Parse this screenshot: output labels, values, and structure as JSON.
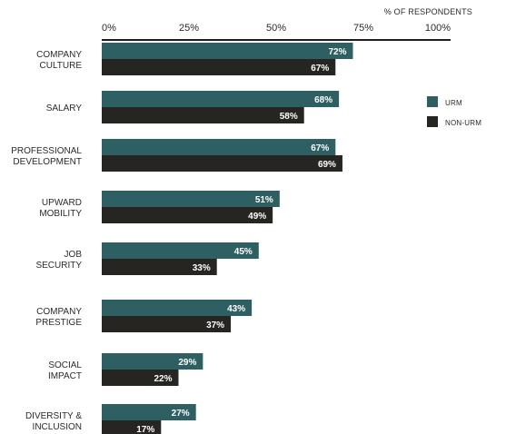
{
  "chart_data": {
    "type": "bar",
    "orientation": "horizontal",
    "axis_title": "% OF RESPONDENTS",
    "x_ticks": [
      "0%",
      "25%",
      "50%",
      "75%",
      "100%"
    ],
    "xlim": [
      0,
      100
    ],
    "categories": [
      [
        "COMPANY",
        "CULTURE"
      ],
      [
        "SALARY"
      ],
      [
        "PROFESSIONAL",
        "DEVELOPMENT"
      ],
      [
        "UPWARD",
        "MOBILITY"
      ],
      [
        "JOB",
        "SECURITY"
      ],
      [
        "COMPANY",
        "PRESTIGE"
      ],
      [
        "SOCIAL",
        "IMPACT"
      ],
      [
        "DIVERSITY &",
        "INCLUSION"
      ]
    ],
    "series": [
      {
        "name": "URM",
        "color": "#2d5f63",
        "values": [
          72,
          68,
          67,
          51,
          45,
          43,
          29,
          27
        ],
        "labels": [
          "72%",
          "68%",
          "67%",
          "51%",
          "45%",
          "43%",
          "29%",
          "27%"
        ]
      },
      {
        "name": "NON-URM",
        "color": "#272522",
        "values": [
          67,
          58,
          69,
          49,
          33,
          37,
          22,
          17
        ],
        "labels": [
          "67%",
          "58%",
          "69%",
          "49%",
          "33%",
          "37%",
          "22%",
          "17%"
        ]
      }
    ],
    "legend_position": "right",
    "grid": false,
    "colors": {
      "background": "#ffffff",
      "axis": "#1f1d1b",
      "text": "#2a2a2a",
      "label_text": "#ffffff"
    }
  }
}
